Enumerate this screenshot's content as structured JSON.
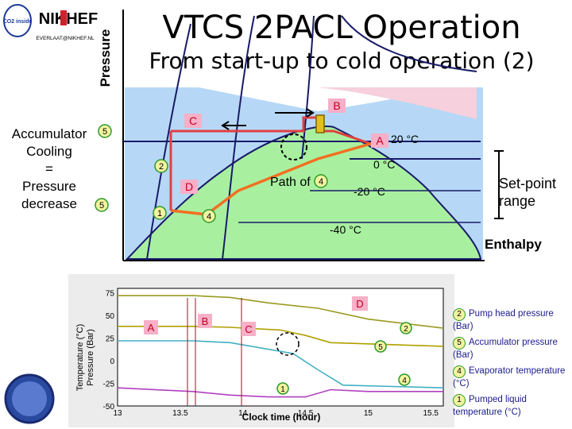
{
  "header": {
    "title": "VTCS 2PACL Operation",
    "subtitle": "From start-up to cold operation (2)",
    "logo_text_1": "NIKHEF",
    "logo_email": "EVERLAAT@NIKHEF.NL",
    "logo_co2": "CO2 inside"
  },
  "diagram": {
    "pressure_label": "Pressure",
    "enthalpy_label": "Enthalpy",
    "setpoint_line1": "Set-point",
    "setpoint_line2": "range",
    "accumulator": [
      "Accumulator",
      "Cooling",
      "=",
      "Pressure",
      "decrease"
    ],
    "point_labels": {
      "a": "A",
      "b": "B",
      "c": "C",
      "d": "D"
    },
    "temps": {
      "t20": "20 °C",
      "t0": "0 °C",
      "tm20": "-20 °C",
      "tm40": "-40 °C"
    },
    "path_of": "Path of",
    "badges": {
      "five": "5",
      "two": "2",
      "one": "1",
      "four": "4"
    }
  },
  "chart": {
    "ylabel_1": "Temperature (°C)",
    "ylabel_2": "Pressure (Bar)",
    "xlabel": "Clock time (hour)",
    "yticks": [
      "75",
      "50",
      "25",
      "0",
      "-25",
      "-50"
    ],
    "xticks": [
      "13",
      "13.5",
      "14",
      "14.5",
      "15",
      "15.5"
    ],
    "markers": {
      "a": "A",
      "b": "B",
      "c": "C",
      "d": "D"
    },
    "series_badges": {
      "two": "2",
      "five": "5",
      "four": "4",
      "one": "1"
    }
  },
  "legend": {
    "items": [
      {
        "num": "2",
        "text": "Pump head pressure (Bar)"
      },
      {
        "num": "5",
        "text": "Accumulator pressure (Bar)"
      },
      {
        "num": "4",
        "text": "Evaporator temperature (°C)"
      },
      {
        "num": "1",
        "text": "Pumped liquid temperature (°C)"
      }
    ]
  },
  "chart_data": {
    "type": "line",
    "xlabel": "Clock time (hour)",
    "ylabel": "Temperature (°C) / Pressure (Bar)",
    "xlim": [
      13,
      15.6
    ],
    "ylim": [
      -50,
      80
    ],
    "series": [
      {
        "name": "2",
        "x": [
          13,
          13.6,
          13.9,
          14.2,
          14.6,
          15,
          15.6
        ],
        "y": [
          72,
          72,
          70,
          64,
          58,
          46,
          36
        ]
      },
      {
        "name": "5",
        "x": [
          13,
          13.6,
          13.9,
          14.3,
          14.5,
          14.7,
          15.6
        ],
        "y": [
          38,
          38,
          37,
          34,
          28,
          20,
          16
        ]
      },
      {
        "name": "4",
        "x": [
          13,
          13.6,
          13.9,
          14.4,
          14.6,
          14.8,
          15.6
        ],
        "y": [
          22,
          22,
          20,
          8,
          -10,
          -27,
          -30
        ]
      },
      {
        "name": "1",
        "x": [
          13,
          13.6,
          13.9,
          14.2,
          14.5,
          14.7,
          15,
          15.6
        ],
        "y": [
          -30,
          -34,
          -38,
          -40,
          -40,
          -32,
          -34,
          -34
        ]
      }
    ],
    "colors": {
      "2": "#9a9a20",
      "5": "#b0a000",
      "4": "#40b0c0",
      "1": "#b040c0"
    }
  }
}
